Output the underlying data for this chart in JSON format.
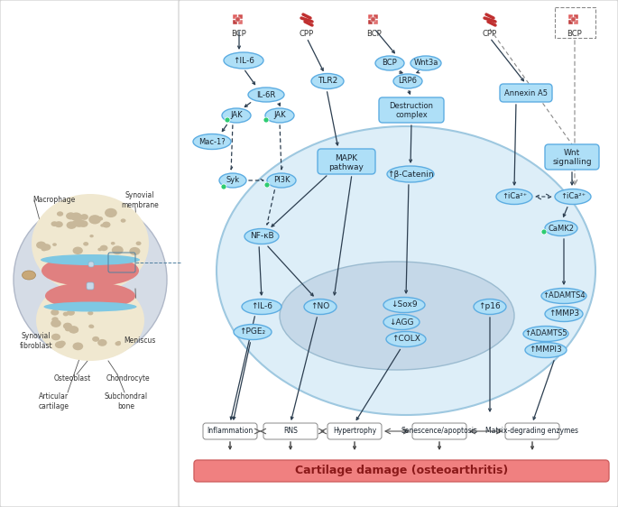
{
  "bg_color": "#f5f5f5",
  "panel_bg": "#ffffff",
  "title": "Cartilage damage (osteoarthritis)",
  "bottom_bar_color": "#f08080",
  "bottom_labels": [
    "Inflammation",
    "RNS",
    "Hypertrophy",
    "Senescence/apoptosis",
    "Matrix-degrading enzymes"
  ],
  "cell_color": "#d6eaf8",
  "cell_nucleus_color": "#bdc3c7",
  "node_color": "#aedff7",
  "node_border": "#5dade2",
  "rect_color": "#aedff7",
  "rect_border": "#5dade2",
  "arrow_color": "#2c3e50",
  "dashed_color": "#2c3e50",
  "green_dot": "#2ecc71",
  "bcp_color": "#e74c3c",
  "cpp_color": "#e74c3c"
}
